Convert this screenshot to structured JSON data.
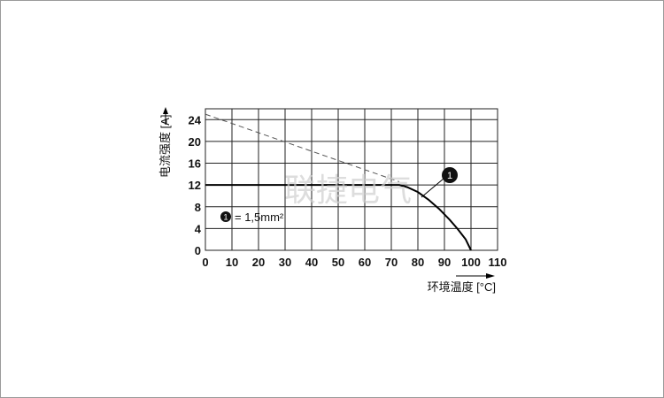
{
  "chart_data": {
    "type": "line",
    "xlabel": "环境温度 [°C]",
    "ylabel": "电流强度 [A]",
    "xlim": [
      0,
      110
    ],
    "ylim": [
      0,
      26
    ],
    "x_ticks": [
      0,
      10,
      20,
      30,
      40,
      50,
      60,
      70,
      80,
      90,
      100,
      110
    ],
    "y_ticks": [
      0,
      4,
      8,
      12,
      16,
      20,
      24
    ],
    "grid": true,
    "series": [
      {
        "style": "solid",
        "color": "#000000",
        "x": [
          0,
          73,
          76,
          80,
          84,
          88,
          92,
          95,
          98,
          100
        ],
        "y": [
          12,
          12,
          11.6,
          10.7,
          9.3,
          7.6,
          5.6,
          3.9,
          2.0,
          0
        ]
      },
      {
        "style": "dashed",
        "color": "#555555",
        "x": [
          0,
          73
        ],
        "y": [
          25,
          12.6
        ]
      }
    ],
    "annotations": [
      {
        "marker": "1",
        "text": "= 1,5mm²"
      }
    ]
  },
  "watermark": "联捷电气"
}
